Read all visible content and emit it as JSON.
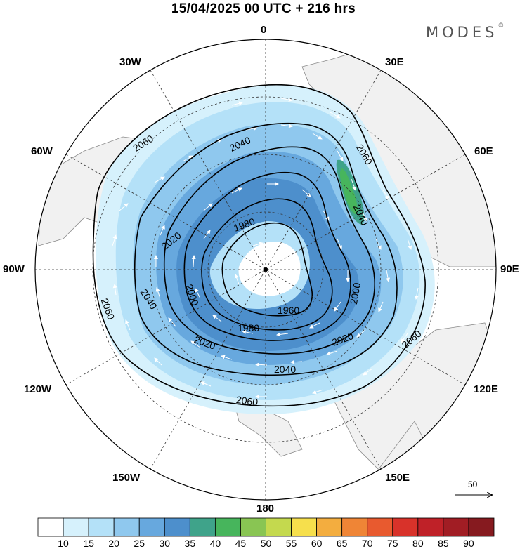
{
  "header": {
    "title": "15/04/2025  00 UTC  + 216 hrs",
    "brand": "MODES",
    "brand_mark": "©"
  },
  "map": {
    "projection": "north-polar-stereographic",
    "meridian_labels": [
      {
        "name": "0",
        "lon": 0
      },
      {
        "name": "30E",
        "lon": 30
      },
      {
        "name": "60E",
        "lon": 60
      },
      {
        "name": "90E",
        "lon": 90
      },
      {
        "name": "120E",
        "lon": 120
      },
      {
        "name": "150E",
        "lon": 150
      },
      {
        "name": "180",
        "lon": 180
      },
      {
        "name": "150W",
        "lon": -150
      },
      {
        "name": "120W",
        "lon": -120
      },
      {
        "name": "90W",
        "lon": -90
      },
      {
        "name": "60W",
        "lon": -60
      },
      {
        "name": "30W",
        "lon": -30
      }
    ],
    "contour_labels": [
      "2060",
      "2040",
      "2020",
      "2000",
      "1980",
      "1960"
    ],
    "contour_color": "#000000",
    "land_color": "#f0f0f0",
    "reference_vector": {
      "label": "50"
    }
  },
  "colorbar": {
    "ticks": [
      "10",
      "15",
      "20",
      "25",
      "30",
      "35",
      "40",
      "45",
      "50",
      "55",
      "60",
      "65",
      "70",
      "75",
      "80",
      "85",
      "90"
    ],
    "colors": [
      "#ffffff",
      "#d6f1fc",
      "#b4e1f8",
      "#8fc8ee",
      "#67a8de",
      "#4d8fcc",
      "#3fa38a",
      "#47b55c",
      "#89c553",
      "#c4d94e",
      "#f6df4c",
      "#f3ad3f",
      "#ef8536",
      "#e85a2f",
      "#d8322a",
      "#bf2128",
      "#a11d24",
      "#861a1f"
    ]
  }
}
